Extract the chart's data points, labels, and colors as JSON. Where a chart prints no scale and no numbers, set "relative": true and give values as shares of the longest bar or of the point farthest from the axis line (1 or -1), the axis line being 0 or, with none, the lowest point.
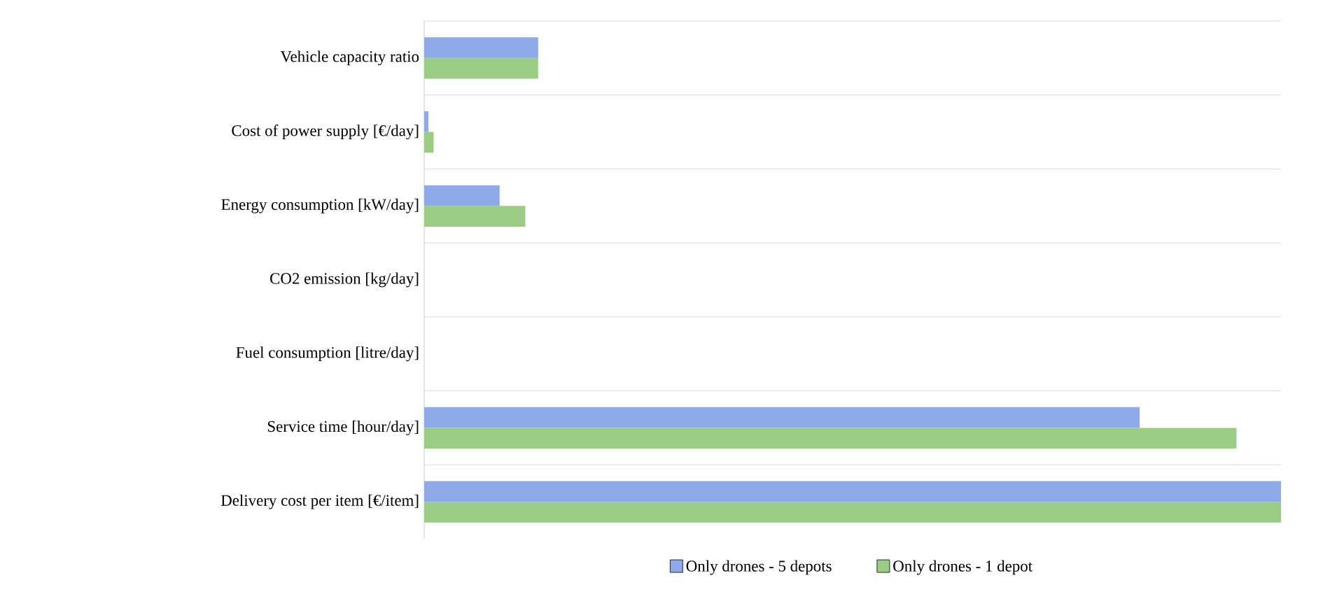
{
  "chart_data": {
    "type": "bar",
    "orientation": "horizontal",
    "relative": true,
    "categories": [
      "Vehicle capacity ratio",
      "Cost of power supply [€/day]",
      "Energy consumption [kW/day]",
      "CO2 emission [kg/day]",
      "Fuel consumption [litre/day]",
      "Service time [hour/day]",
      "Delivery cost per item [€/item]"
    ],
    "series": [
      {
        "name": "Only drones - 5 depots",
        "color": "#8eaae8",
        "values": [
          0.133,
          0.005,
          0.088,
          0,
          0,
          0.835,
          1
        ]
      },
      {
        "name": "Only drones - 1 depot",
        "color": "#9acd83",
        "values": [
          0.133,
          0.011,
          0.118,
          0,
          0,
          0.948,
          1
        ]
      }
    ],
    "grid": "y",
    "legend": "bottom"
  }
}
